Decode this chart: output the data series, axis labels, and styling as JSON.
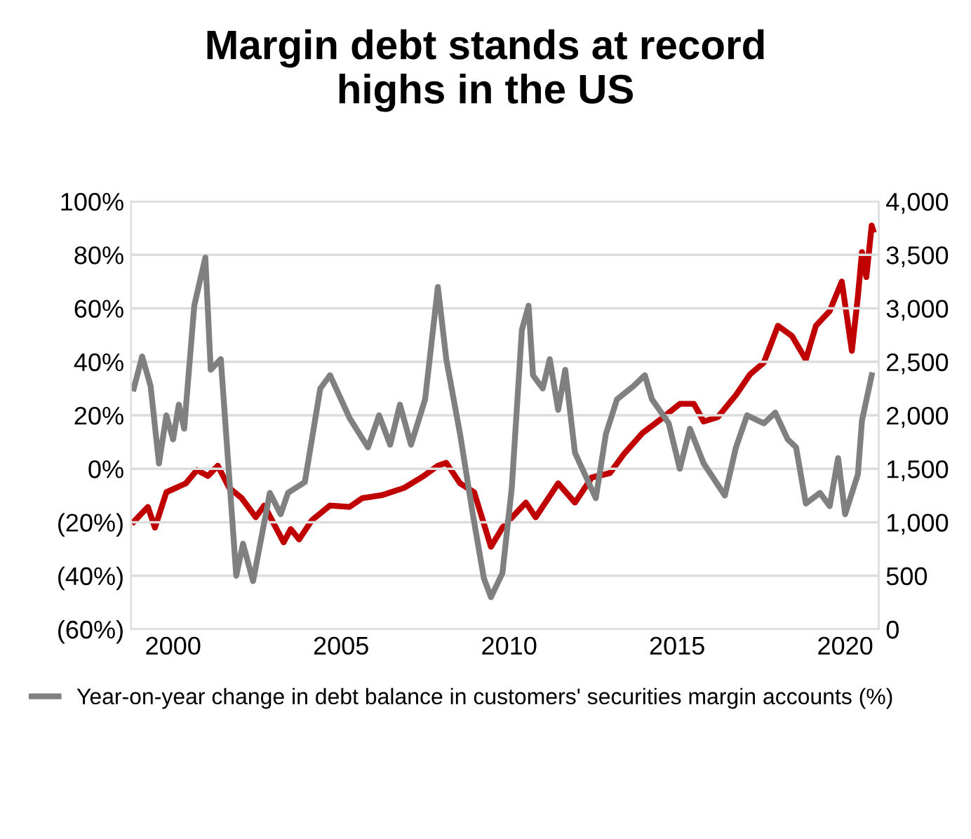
{
  "chart_data": {
    "type": "line",
    "title": "Margin debt stands at record\nhighs in the US",
    "xlim": [
      1998.75,
      2021
    ],
    "xticks": [
      2000,
      2005,
      2010,
      2015,
      2020
    ],
    "ylim": [
      -60,
      100
    ],
    "yticks": [
      {
        "value": -60,
        "label": "(60%)"
      },
      {
        "value": -40,
        "label": "(40%)"
      },
      {
        "value": -20,
        "label": "(20%)"
      },
      {
        "value": 0,
        "label": "0%"
      },
      {
        "value": 20,
        "label": "20%"
      },
      {
        "value": 40,
        "label": "40%"
      },
      {
        "value": 60,
        "label": "60%"
      },
      {
        "value": 80,
        "label": "80%"
      },
      {
        "value": 100,
        "label": "100%"
      }
    ],
    "y2lim": [
      0,
      4000
    ],
    "y2ticks": [
      {
        "value": 0,
        "label": "0"
      },
      {
        "value": 500,
        "label": "500"
      },
      {
        "value": 1000,
        "label": "1,000"
      },
      {
        "value": 1500,
        "label": "1,500"
      },
      {
        "value": 2000,
        "label": "2,000"
      },
      {
        "value": 2500,
        "label": "2,500"
      },
      {
        "value": 3000,
        "label": "3,000"
      },
      {
        "value": 3500,
        "label": "3,500"
      },
      {
        "value": 4000,
        "label": "4,000"
      }
    ],
    "grid": "y",
    "legend": "bottom",
    "marker": "none",
    "line_style": "solid",
    "series": [
      {
        "name": "Year-on-year change in debt balance in customers' securities margin accounts (%)",
        "color": "#808080",
        "x": [
          1998.83,
          1999.08,
          1999.33,
          1999.58,
          1999.8,
          2000.0,
          2000.17,
          2000.33,
          2000.63,
          2000.96,
          2001.12,
          2001.42,
          2001.88,
          2002.08,
          2002.38,
          2002.88,
          2003.2,
          2003.42,
          2003.92,
          2004.38,
          2004.67,
          2005.25,
          2005.8,
          2006.13,
          2006.46,
          2006.75,
          2007.08,
          2007.5,
          2007.88,
          2008.13,
          2008.54,
          2008.92,
          2009.25,
          2009.46,
          2009.8,
          2010.08,
          2010.38,
          2010.58,
          2010.71,
          2011.0,
          2011.21,
          2011.46,
          2011.67,
          2011.96,
          2012.58,
          2012.88,
          2013.21,
          2013.71,
          2014.04,
          2014.25,
          2014.75,
          2015.08,
          2015.38,
          2015.79,
          2016.42,
          2016.75,
          2017.08,
          2017.58,
          2017.92,
          2018.29,
          2018.54,
          2018.83,
          2019.25,
          2019.54,
          2019.79,
          2020.0,
          2020.38,
          2020.5,
          2020.79
        ],
        "values": [
          30,
          42,
          31,
          2,
          20,
          11,
          24,
          15,
          61,
          79,
          37,
          41,
          -40,
          -28,
          -42,
          -9,
          -17,
          -9,
          -5,
          30,
          35,
          19,
          8,
          20,
          9,
          24,
          9,
          26,
          68,
          41,
          13,
          -17,
          -41,
          -48,
          -39,
          -7,
          52,
          61,
          35,
          30,
          41,
          22,
          37,
          6,
          -11,
          13,
          26,
          31,
          35,
          26,
          17,
          0,
          15,
          2,
          -10,
          8,
          20,
          17,
          21,
          11,
          8,
          -13,
          -9,
          -14,
          4,
          -17,
          -2,
          18,
          35
        ]
      },
      {
        "color": "#c00000",
        "axis": "y2",
        "x": [
          1998.83,
          1999.25,
          1999.46,
          1999.8,
          2000.38,
          2000.71,
          2001.04,
          2001.33,
          2001.67,
          2002.04,
          2002.46,
          2002.71,
          2003.29,
          2003.5,
          2003.75,
          2004.13,
          2004.67,
          2005.25,
          2005.63,
          2006.21,
          2006.88,
          2007.46,
          2007.88,
          2008.13,
          2008.54,
          2008.96,
          2009.46,
          2009.8,
          2010.5,
          2010.79,
          2011.46,
          2011.96,
          2012.46,
          2013.0,
          2013.42,
          2013.96,
          2014.54,
          2015.08,
          2015.5,
          2015.79,
          2016.21,
          2016.75,
          2017.17,
          2017.58,
          2018.0,
          2018.42,
          2018.83,
          2019.13,
          2019.54,
          2019.9,
          2020.2,
          2020.38,
          2020.5,
          2020.63,
          2020.79,
          2020.83
        ],
        "values": [
          1005,
          1143,
          950,
          1281,
          1364,
          1488,
          1433,
          1529,
          1322,
          1226,
          1047,
          1157,
          813,
          937,
          840,
          1019,
          1157,
          1143,
          1226,
          1253,
          1322,
          1433,
          1529,
          1556,
          1364,
          1281,
          771,
          950,
          1184,
          1047,
          1364,
          1184,
          1419,
          1460,
          1639,
          1832,
          1970,
          2107,
          2107,
          1942,
          1983,
          2190,
          2383,
          2493,
          2837,
          2741,
          2521,
          2837,
          2975,
          3251,
          2603,
          3113,
          3526,
          3292,
          3774,
          3733
        ]
      }
    ]
  }
}
